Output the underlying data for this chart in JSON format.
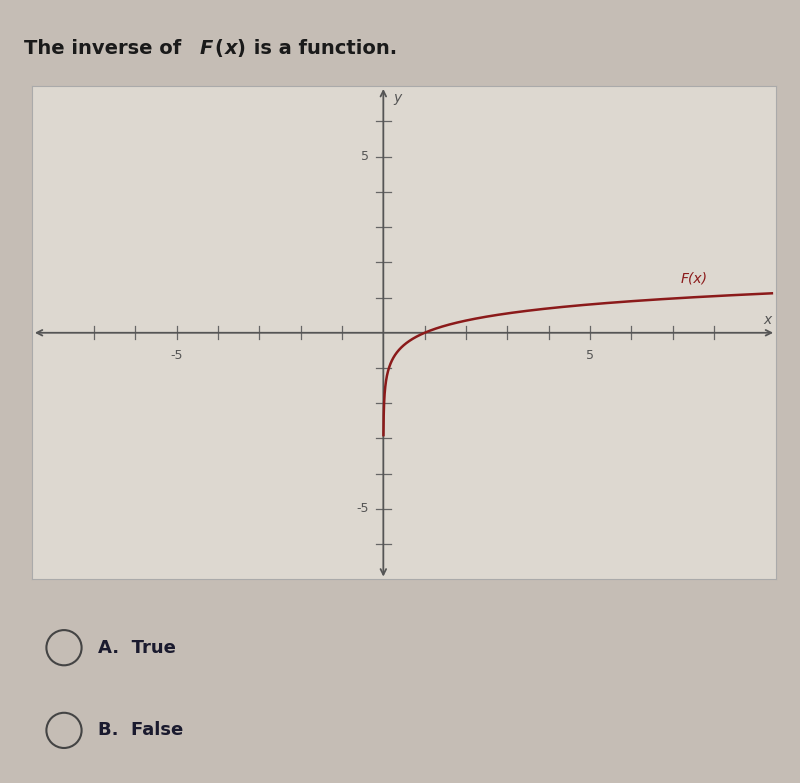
{
  "xlim": [
    -8.5,
    9.5
  ],
  "ylim": [
    -7,
    7
  ],
  "curve_color": "#8B1A1A",
  "curve_label": "F(x)",
  "bg_color": "#ddd8d0",
  "axes_color": "#555555",
  "answer_A": "A.  True",
  "answer_B": "B.  False",
  "answer_text_color": "#1a1a2e",
  "fig_bg_color": "#c5bdb5",
  "title_color": "#1a1a1a"
}
